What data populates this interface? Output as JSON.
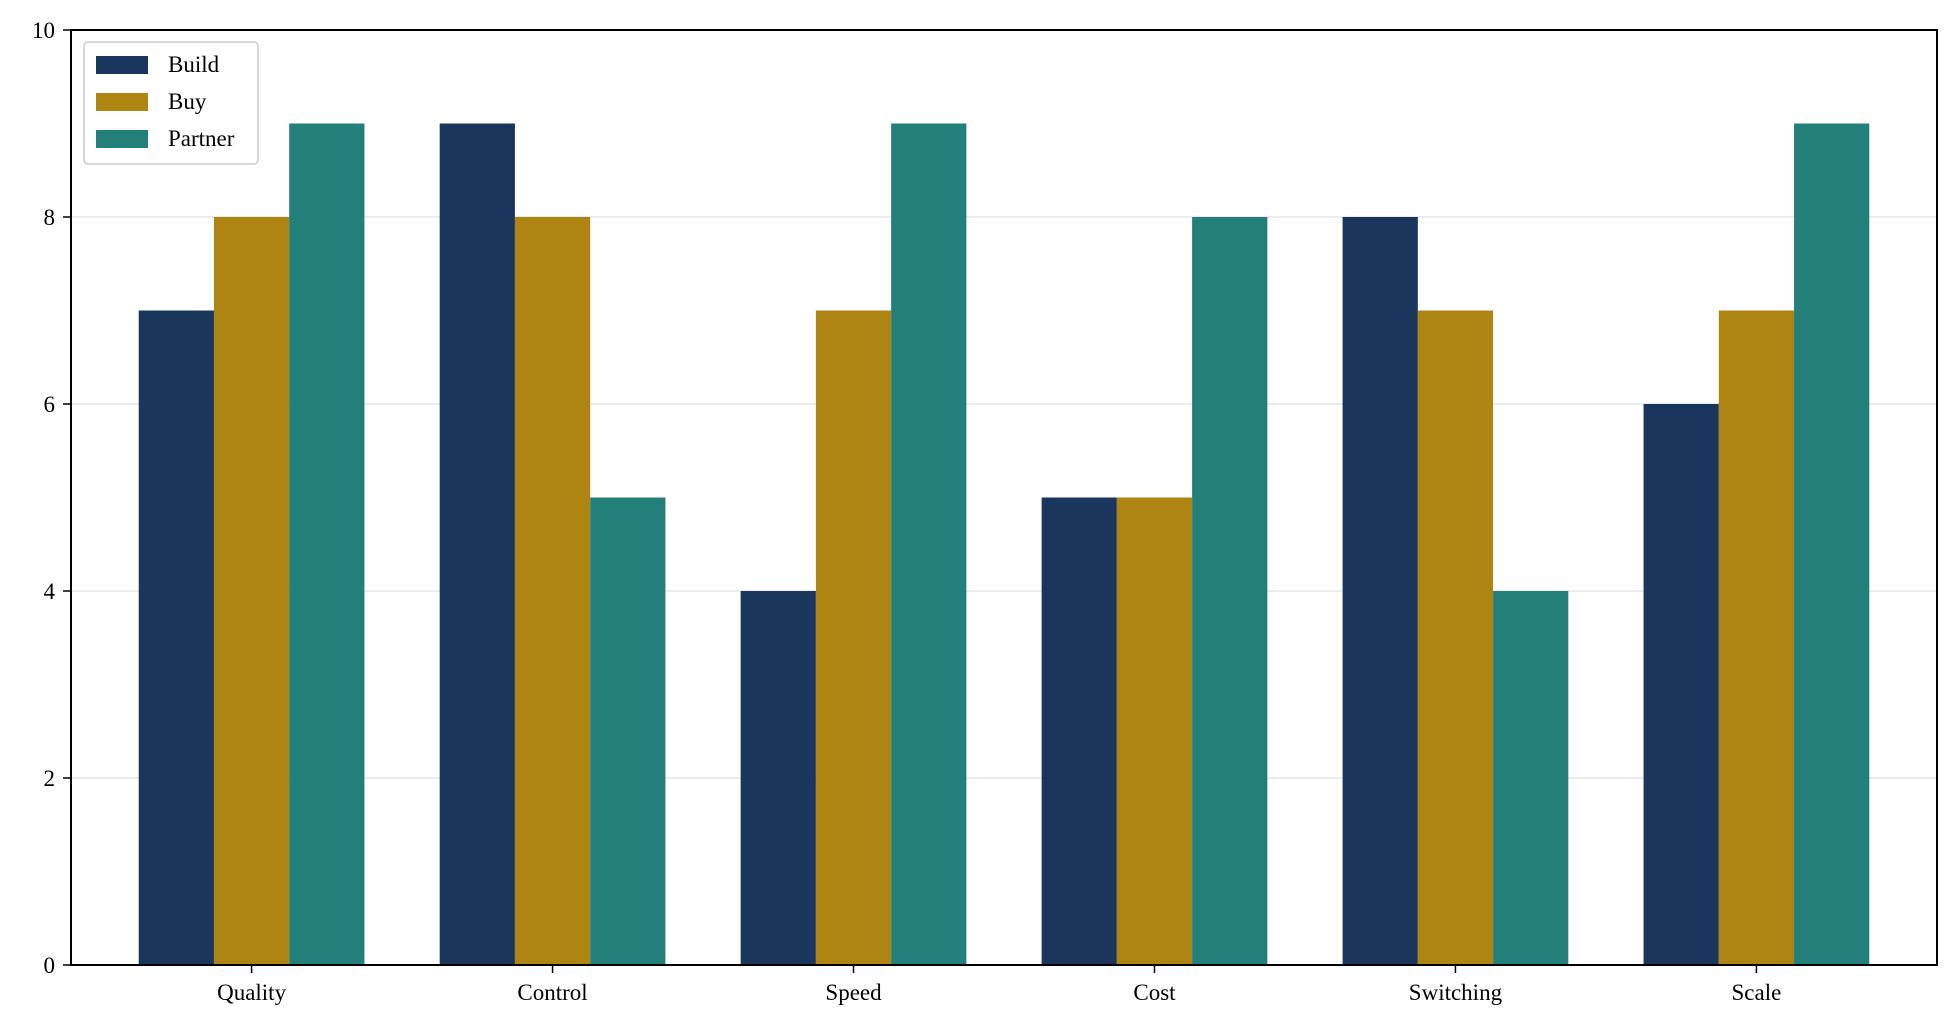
{
  "chart_data": {
    "type": "bar",
    "title": "",
    "xlabel": "",
    "ylabel": "",
    "categories": [
      "Quality",
      "Control",
      "Speed",
      "Cost",
      "Switching",
      "Scale"
    ],
    "series": [
      {
        "name": "Build",
        "color": "#1b365d",
        "values": [
          7,
          9,
          4,
          5,
          8,
          6
        ]
      },
      {
        "name": "Buy",
        "color": "#ae8512",
        "values": [
          8,
          8,
          7,
          5,
          7,
          7
        ]
      },
      {
        "name": "Partner",
        "color": "#237f79",
        "values": [
          9,
          5,
          9,
          8,
          4,
          9
        ]
      }
    ],
    "ylim": [
      0,
      10
    ],
    "yticks": [
      "0",
      "2",
      "4",
      "6",
      "8",
      "10"
    ],
    "grid": "horizontal",
    "legend_position": "top-left"
  }
}
